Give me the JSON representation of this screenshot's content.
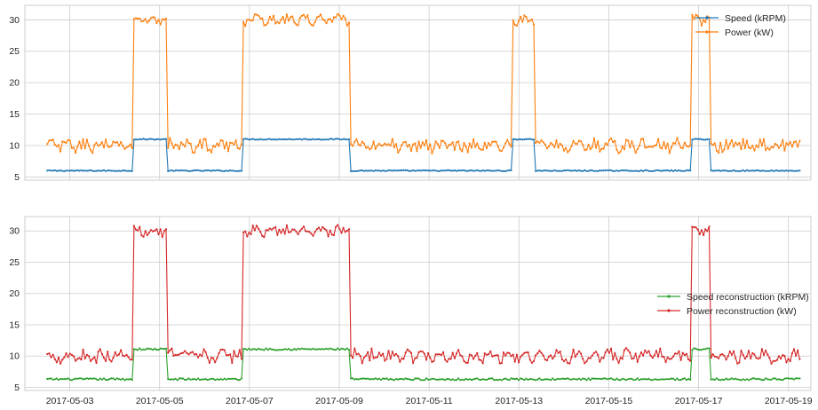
{
  "chart_data": [
    {
      "type": "line",
      "panel": "top",
      "x_start": "2017-05-02T12:00",
      "x_end": "2017-05-19T06:00",
      "xlim": [
        "2017-05-02T00:00",
        "2017-05-19T12:00"
      ],
      "ylim": [
        4.5,
        32.3
      ],
      "yticks": [
        5,
        10,
        15,
        20,
        25,
        30
      ],
      "xticks": [],
      "grid": true,
      "legend_position": "top-right",
      "points_per_series": 400,
      "high_windows": [
        [
          "2017-05-04T10:00",
          "2017-05-05T04:00"
        ],
        [
          "2017-05-06T20:00",
          "2017-05-09T06:00"
        ],
        [
          "2017-05-12T20:00",
          "2017-05-13T08:00"
        ],
        [
          "2017-05-16T20:00",
          "2017-05-17T06:00"
        ]
      ],
      "series": [
        {
          "name": "Speed (kRPM)",
          "color": "#1f77b4",
          "marker": true,
          "baseline": 6.0,
          "high": 11.0,
          "noise": 0.08,
          "power_like": false
        },
        {
          "name": "Power (kW)",
          "color": "#ff7f0e",
          "marker": true,
          "baseline": 10.0,
          "high": 30.0,
          "noise": 0.9,
          "power_like": true
        }
      ]
    },
    {
      "type": "line",
      "panel": "bottom",
      "x_start": "2017-05-02T12:00",
      "x_end": "2017-05-19T06:00",
      "xlim": [
        "2017-05-02T00:00",
        "2017-05-19T12:00"
      ],
      "ylim": [
        4.5,
        32.3
      ],
      "yticks": [
        5,
        10,
        15,
        20,
        25,
        30
      ],
      "xticks": [
        "2017-05-03",
        "2017-05-05",
        "2017-05-07",
        "2017-05-09",
        "2017-05-11",
        "2017-05-13",
        "2017-05-15",
        "2017-05-17",
        "2017-05-19"
      ],
      "grid": true,
      "legend_position": "center-right",
      "points_per_series": 400,
      "high_windows": [
        [
          "2017-05-04T10:00",
          "2017-05-05T04:00"
        ],
        [
          "2017-05-06T20:00",
          "2017-05-09T06:00"
        ],
        [
          "2017-05-16T20:00",
          "2017-05-17T06:00"
        ]
      ],
      "series": [
        {
          "name": "Speed reconstruction (kRPM)",
          "color": "#2ca02c",
          "marker": true,
          "baseline": 6.3,
          "high": 11.1,
          "noise": 0.15,
          "power_like": false
        },
        {
          "name": "Power reconstruction (kW)",
          "color": "#d62728",
          "marker": true,
          "baseline": 10.0,
          "high": 30.0,
          "noise": 0.9,
          "power_like": true
        }
      ]
    }
  ]
}
